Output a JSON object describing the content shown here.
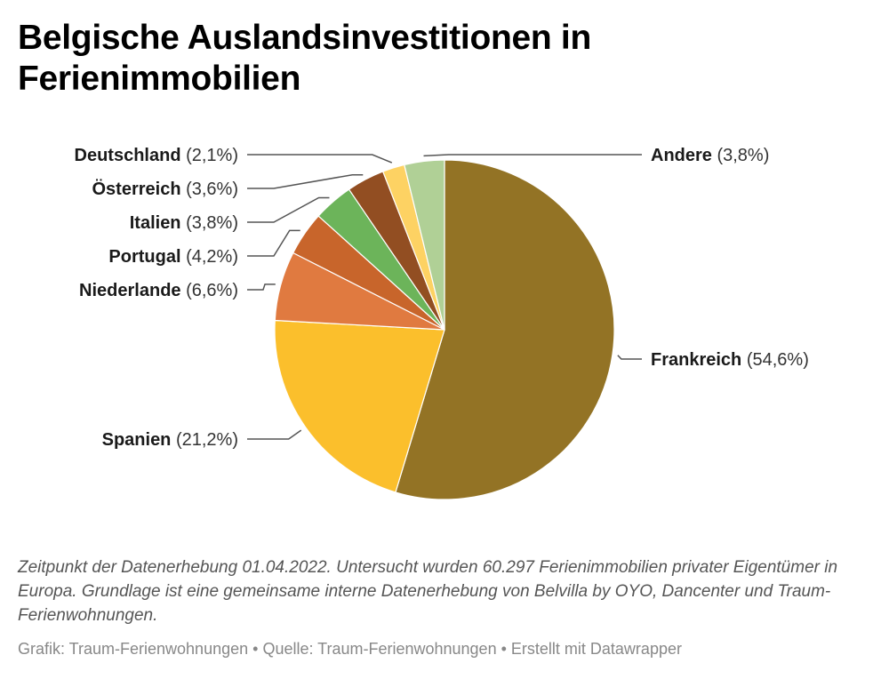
{
  "title": "Belgische Auslandsinvestitionen in Ferienimmobilien",
  "chart_data": {
    "type": "pie",
    "title": "Belgische Auslandsinvestitionen in Ferienimmobilien",
    "unit": "%",
    "slices": [
      {
        "label": "Frankreich",
        "value": 54.6,
        "display": "(54,6%)",
        "color": "#937325"
      },
      {
        "label": "Spanien",
        "value": 21.2,
        "display": "(21,2%)",
        "color": "#fbbf2c"
      },
      {
        "label": "Niederlande",
        "value": 6.6,
        "display": "(6,6%)",
        "color": "#e07a40"
      },
      {
        "label": "Portugal",
        "value": 4.2,
        "display": "(4,2%)",
        "color": "#c8652b"
      },
      {
        "label": "Italien",
        "value": 3.8,
        "display": "(3,8%)",
        "color": "#6cb45a"
      },
      {
        "label": "Österreich",
        "value": 3.6,
        "display": "(3,6%)",
        "color": "#924e22"
      },
      {
        "label": "Deutschland",
        "value": 2.1,
        "display": "(2,1%)",
        "color": "#fdd263"
      },
      {
        "label": "Andere",
        "value": 3.8,
        "display": "(3,8%)",
        "color": "#b0d096"
      }
    ],
    "start": "12 o'clock",
    "direction": "clockwise",
    "legend": "none (direct labels with leader lines)"
  },
  "notes": "Zeitpunkt der Datenerhebung 01.04.2022. Untersucht wurden 60.297 Ferienimmobilien privater Eigentümer in Europa. Grundlage ist eine gemeinsame interne Datenerhebung von Belvilla by OYO, Dancenter und Traum-Ferienwohnungen.",
  "byline": {
    "grafik": "Grafik: Traum-Ferienwohnungen",
    "separator": " • ",
    "quelle": "Quelle: Traum-Ferienwohnungen",
    "erstellt": "Erstellt mit Datawrapper"
  }
}
